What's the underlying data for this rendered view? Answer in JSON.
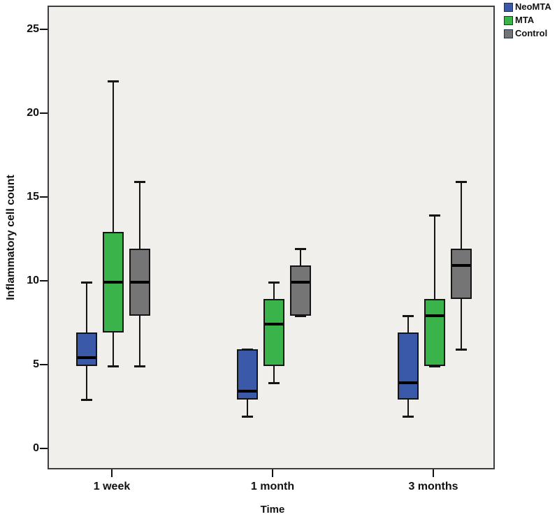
{
  "chart_data": {
    "type": "boxplot",
    "title": "",
    "xlabel": "Time",
    "ylabel": "Inflammatory cell count",
    "categories": [
      "1 week",
      "1 month",
      "3 months"
    ],
    "yticks": [
      0,
      5,
      10,
      15,
      20,
      25
    ],
    "ylim": [
      -1.4,
      26.1
    ],
    "grid": false,
    "legend_position": "top-right",
    "plot_background": "#f0efec",
    "series": [
      {
        "name": "NeoMTA",
        "color": "#3a5aa9",
        "boxes": [
          {
            "min": 3,
            "q1": 5,
            "median": 5.5,
            "q3": 7,
            "max": 10
          },
          {
            "min": 2,
            "q1": 3,
            "median": 3.5,
            "q3": 6,
            "max": 6
          },
          {
            "min": 2,
            "q1": 3,
            "median": 4,
            "q3": 7,
            "max": 8
          }
        ]
      },
      {
        "name": "MTA",
        "color": "#3ab34a",
        "boxes": [
          {
            "min": 5,
            "q1": 7,
            "median": 10,
            "q3": 13,
            "max": 22
          },
          {
            "min": 4,
            "q1": 5,
            "median": 7.5,
            "q3": 9,
            "max": 10
          },
          {
            "min": 5,
            "q1": 5,
            "median": 8,
            "q3": 9,
            "max": 14
          }
        ]
      },
      {
        "name": "Control",
        "color": "#757575",
        "boxes": [
          {
            "min": 5,
            "q1": 8,
            "median": 10,
            "q3": 12,
            "max": 16
          },
          {
            "min": 8,
            "q1": 8,
            "median": 10,
            "q3": 11,
            "max": 12
          },
          {
            "min": 6,
            "q1": 9,
            "median": 11,
            "q3": 12,
            "max": 16
          }
        ]
      }
    ]
  }
}
